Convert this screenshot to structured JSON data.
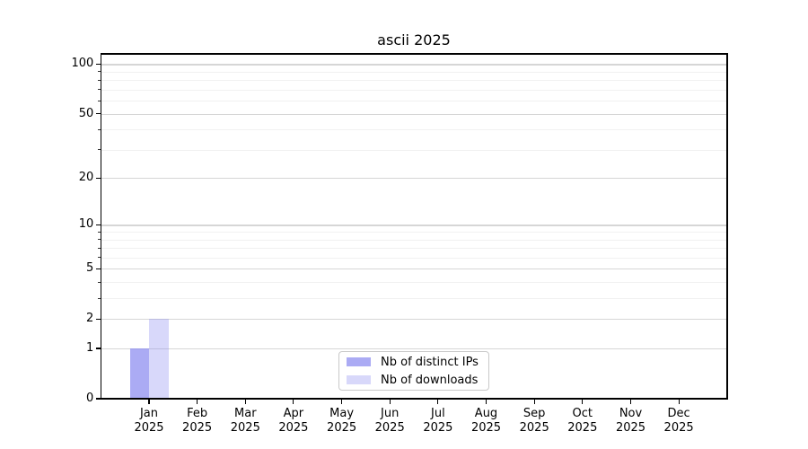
{
  "chart_data": {
    "type": "bar",
    "title": "ascii 2025",
    "x_tick_labels": [
      [
        "Jan",
        "2025"
      ],
      [
        "Feb",
        "2025"
      ],
      [
        "Mar",
        "2025"
      ],
      [
        "Apr",
        "2025"
      ],
      [
        "May",
        "2025"
      ],
      [
        "Jun",
        "2025"
      ],
      [
        "Jul",
        "2025"
      ],
      [
        "Aug",
        "2025"
      ],
      [
        "Sep",
        "2025"
      ],
      [
        "Oct",
        "2025"
      ],
      [
        "Nov",
        "2025"
      ],
      [
        "Dec",
        "2025"
      ]
    ],
    "series": [
      {
        "name": "Nb of distinct IPs",
        "fill": "rgba(136,136,240,0.70)",
        "hex_on_white": "#a8a8f0",
        "values": [
          1,
          0,
          0,
          0,
          0,
          0,
          0,
          0,
          0,
          0,
          0,
          0
        ]
      },
      {
        "name": "Nb of downloads",
        "fill": "rgba(136,136,240,0.33)",
        "hex_on_white": "#d9d9f6",
        "values": [
          2,
          0,
          0,
          0,
          0,
          0,
          0,
          0,
          0,
          0,
          0,
          0
        ]
      }
    ],
    "y_scale": "log1p",
    "y_major_ticks": [
      0,
      1,
      2,
      5,
      10,
      20,
      50,
      100
    ],
    "y_minor_ticks": [
      3,
      4,
      6,
      7,
      8,
      9,
      30,
      40,
      60,
      70,
      80,
      90
    ],
    "ylim": [
      0,
      115
    ],
    "grid": {
      "major_color": "#d6d6d6",
      "minor_color": "#f1f1f1",
      "on": true
    },
    "axis_color": "#000000",
    "legend": {
      "position": "bottom-center",
      "border_color": "#c9c9c9"
    }
  }
}
